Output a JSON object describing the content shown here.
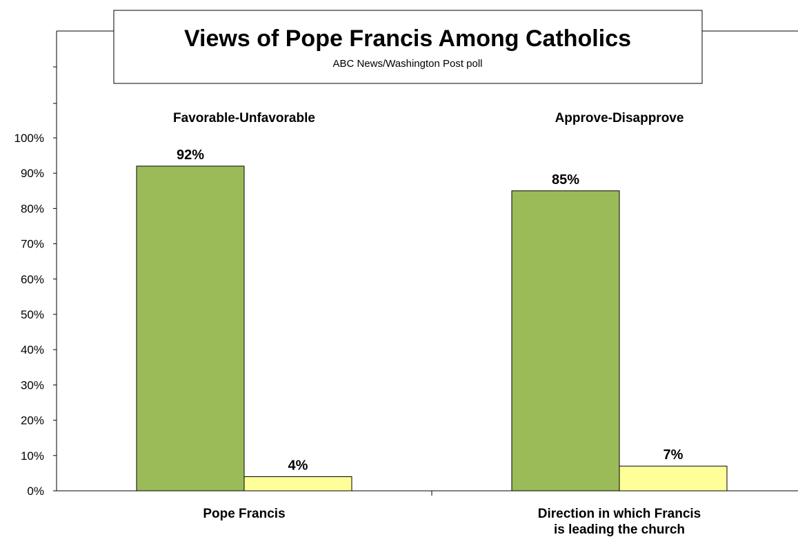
{
  "chart_data": {
    "type": "bar",
    "title": "Views of Pope Francis Among Catholics",
    "subtitle": "ABC News/Washington  Post poll",
    "ylim": [
      0,
      100
    ],
    "yticks": [
      "0%",
      "10%",
      "20%",
      "30%",
      "40%",
      "50%",
      "60%",
      "70%",
      "80%",
      "90%",
      "100%"
    ],
    "groups": [
      {
        "header": "Favorable-Unfavorable",
        "category": "Pope Francis",
        "values": [
          92,
          4
        ],
        "value_labels": [
          "92%",
          "4%"
        ],
        "colors": [
          "#9bbb59",
          "#ffff99"
        ]
      },
      {
        "header": "Approve-Disapprove",
        "category": "Direction in which Francis is leading the church",
        "category_lines": [
          "Direction in which Francis",
          "is leading the church"
        ],
        "values": [
          85,
          7
        ],
        "value_labels": [
          "85%",
          "7%"
        ],
        "colors": [
          "#9bbb59",
          "#ffff99"
        ]
      }
    ],
    "legend": "none",
    "grid": false
  }
}
